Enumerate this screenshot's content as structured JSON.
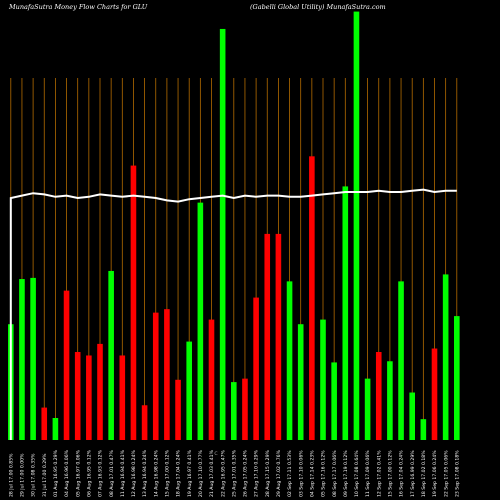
{
  "header": {
    "title_left": "MunafaSutra  Money  Flow  Charts for GLU",
    "title_right": "(Gabelli   Global Utility) MunafaSutra.com"
  },
  "colors": {
    "background": "#000000",
    "up": "#00ff00",
    "down": "#ff0000",
    "grid": "#b36b00",
    "line": "#ffffff"
  },
  "chart_data": {
    "type": "bar",
    "title": "MunafaSutra  Money  Flow  Charts for GLU",
    "subtitle": "(Gabelli   Global Utility) MunafaSutra.com",
    "center_marker": "C",
    "categories": [
      "28 Jul 17.00 0.85%",
      "29 Jul 17.00 0.00%",
      "30 Jul 17.08 0.35%",
      "31 Jul 17.00 0.29%",
      "01 Aug 16.95 0.29%",
      "04 Aug 16.96 0.06%",
      "05 Aug 16.97 0.06%",
      "06 Aug 16.95 0.12%",
      "07 Aug 16.93 0.12%",
      "08 Aug 17.01 0.47%",
      "11 Aug 16.94 0.41%",
      "12 Aug 16.98 0.24%",
      "13 Aug 16.94 0.24%",
      "14 Aug 16.98 0.24%",
      "15 Aug 17.00 0.12%",
      "18 Aug 17.04 0.24%",
      "19 Aug 16.97 0.41%",
      "20 Aug 17.10 0.77%",
      "21 Aug 17.03 0.41%",
      "22 Aug 16.95 0.47%",
      "25 Aug 17.01 0.35%",
      "26 Aug 17.05 0.24%",
      "27 Aug 17.10 0.29%",
      "28 Aug 17.15 0.29%",
      "29 Aug 17.02 0.76%",
      "02 Sep 17.11 0.53%",
      "03 Sep 17.10 0.06%",
      "04 Sep 17.14 0.23%",
      "05 Sep 17.16 0.12%",
      "08 Sep 17.17 0.06%",
      "09 Sep 17.19 0.12%",
      "10 Sep 17.08 0.64%",
      "11 Sep 17.09 0.06%",
      "12 Sep 17.02 0.41%",
      "15 Sep 17.00 0.12%",
      "16 Sep 17.04 0.24%",
      "17 Sep 16.99 0.29%",
      "18 Sep 17.02 0.18%",
      "19 Sep 17.06 0.24%",
      "22 Sep 17.05 0.06%",
      "23 Sep 17.08 0.18%"
    ],
    "series": [
      {
        "values": [
          100,
          139,
          140,
          28,
          19,
          129,
          76,
          73,
          83,
          146,
          73,
          237,
          30,
          110,
          113,
          52,
          85,
          205,
          104,
          355,
          50,
          53,
          123,
          178,
          178,
          137,
          100,
          245,
          104,
          67,
          219,
          370,
          53,
          76,
          68,
          137,
          41,
          18,
          79,
          143,
          107
        ],
        "directions": [
          "up",
          "up",
          "up",
          "down",
          "up",
          "down",
          "down",
          "down",
          "down",
          "up",
          "down",
          "down",
          "down",
          "down",
          "down",
          "down",
          "up",
          "up",
          "down",
          "up",
          "up",
          "down",
          "down",
          "down",
          "down",
          "up",
          "up",
          "down",
          "up",
          "up",
          "up",
          "up",
          "up",
          "down",
          "up",
          "up",
          "up",
          "up",
          "down",
          "up",
          "up"
        ]
      }
    ],
    "overlay_line": [
      35,
      37,
      39,
      38,
      36,
      37,
      35,
      36,
      38,
      37,
      36,
      37,
      36,
      35,
      33,
      32,
      34,
      35,
      36,
      37,
      35,
      37,
      36,
      37,
      37,
      36,
      36,
      37,
      38,
      39,
      40,
      40,
      40,
      41,
      40,
      40,
      41,
      42,
      40,
      41,
      41
    ],
    "ylim": [
      0,
      380
    ],
    "grid": "vertical",
    "legend": "none"
  }
}
